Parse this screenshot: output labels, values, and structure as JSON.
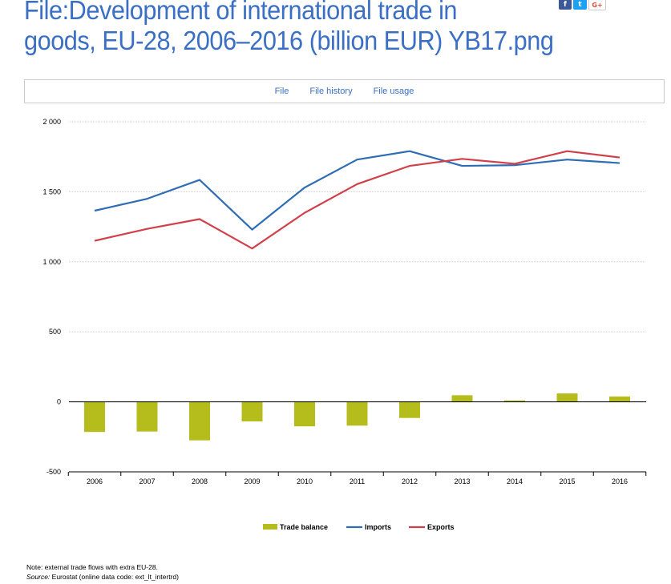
{
  "page": {
    "title_line1": "File:Development of international trade in",
    "title_line2": "goods, EU-28, 2006–2016 (billion EUR) YB17.png"
  },
  "social": [
    {
      "name": "facebook",
      "glyph": "f",
      "color": "#3b5998"
    },
    {
      "name": "twitter",
      "glyph": "t",
      "color": "#1da1f2"
    },
    {
      "name": "google-plus",
      "glyph": "G+",
      "color": "#dd4b39"
    }
  ],
  "tabs": [
    {
      "label": "File"
    },
    {
      "label": "File history"
    },
    {
      "label": "File usage"
    }
  ],
  "chart_data": {
    "type": "line",
    "categories": [
      "2006",
      "2007",
      "2008",
      "2009",
      "2010",
      "2011",
      "2012",
      "2013",
      "2014",
      "2015",
      "2016"
    ],
    "yticks": [
      -500,
      0,
      500,
      1000,
      1500,
      2000
    ],
    "ytick_labels": [
      "-500",
      "0",
      "500",
      "1 000",
      "1 500",
      "2 000"
    ],
    "ylim": [
      -500,
      2000
    ],
    "grid": true,
    "legend_position": "bottom",
    "series": [
      {
        "name": "Trade balance",
        "kind": "bar",
        "color": "#b5bd1c",
        "values": [
          -215,
          -212,
          -275,
          -140,
          -175,
          -170,
          -115,
          47,
          10,
          60,
          38
        ]
      },
      {
        "name": "Imports",
        "kind": "line",
        "color": "#2e6db4",
        "values": [
          1365,
          1450,
          1585,
          1230,
          1530,
          1730,
          1790,
          1685,
          1690,
          1730,
          1705
        ]
      },
      {
        "name": "Exports",
        "kind": "line",
        "color": "#d1404a",
        "values": [
          1150,
          1235,
          1305,
          1095,
          1350,
          1555,
          1685,
          1735,
          1700,
          1790,
          1745
        ]
      }
    ]
  },
  "footnote": {
    "note": "Note: external trade flows with extra EU-28.",
    "source_label": "Source:",
    "source_text": " Eurostat (online data code: ext_lt_intertrd)"
  }
}
